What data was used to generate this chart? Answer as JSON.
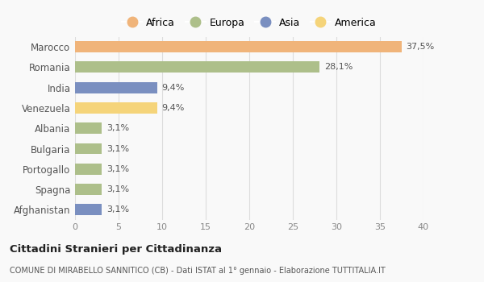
{
  "categories": [
    "Marocco",
    "Romania",
    "India",
    "Venezuela",
    "Albania",
    "Bulgaria",
    "Portogallo",
    "Spagna",
    "Afghanistan"
  ],
  "values": [
    37.5,
    28.1,
    9.4,
    9.4,
    3.1,
    3.1,
    3.1,
    3.1,
    3.1
  ],
  "labels": [
    "37,5%",
    "28,1%",
    "9,4%",
    "9,4%",
    "3,1%",
    "3,1%",
    "3,1%",
    "3,1%",
    "3,1%"
  ],
  "colors": [
    "#F0B47A",
    "#ADBF8A",
    "#7A8FC0",
    "#F5D47A",
    "#ADBF8A",
    "#ADBF8A",
    "#ADBF8A",
    "#ADBF8A",
    "#7A8FC0"
  ],
  "legend": [
    {
      "label": "Africa",
      "color": "#F0B47A"
    },
    {
      "label": "Europa",
      "color": "#ADBF8A"
    },
    {
      "label": "Asia",
      "color": "#7A8FC0"
    },
    {
      "label": "America",
      "color": "#F5D47A"
    }
  ],
  "xlim": [
    0,
    40
  ],
  "xticks": [
    0,
    5,
    10,
    15,
    20,
    25,
    30,
    35,
    40
  ],
  "title_main": "Cittadini Stranieri per Cittadinanza",
  "title_sub": "COMUNE DI MIRABELLO SANNITICO (CB) - Dati ISTAT al 1° gennaio - Elaborazione TUTTITALIA.IT",
  "background_color": "#f9f9f9",
  "grid_color": "#dddddd",
  "bar_height": 0.55
}
